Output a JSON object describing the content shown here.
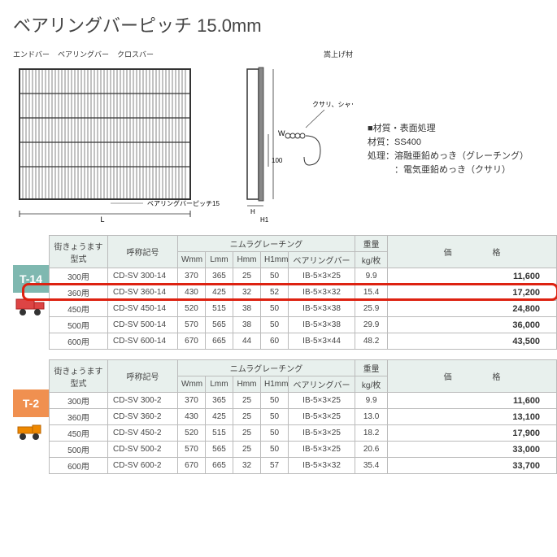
{
  "title": "ベアリングバーピッチ 15.0mm",
  "diagram_labels": {
    "endbar": "エンドバー",
    "bearingbar": "ベアリングバー",
    "crossbar": "クロスバー",
    "lift": "嵩上げ材",
    "chain": "クサリ、シャックル",
    "pitch_note": "ベアリングバーピッチ15",
    "dim_L": "L",
    "dim_W": "W",
    "dim_100": "100",
    "dim_H": "H",
    "dim_H1": "H1"
  },
  "material": {
    "head": "■材質・表面処理",
    "line1": "材質：SS400",
    "line2": "処理：溶融亜鉛めっき（グレーチング）",
    "line3": "　　　：電気亜鉛めっき（クサリ）"
  },
  "headers": {
    "kata": "街きょうます型式",
    "model": "呼称記号",
    "group": "ニムラグレーチング",
    "W": "Wmm",
    "L": "Lmm",
    "H": "Hmm",
    "H1": "H1mm",
    "bar": "ベアリングバー",
    "weight_a": "重量",
    "weight_b": "kg/枚",
    "price": "価　　　　　格"
  },
  "t14": {
    "tag": "T-14",
    "rows": [
      {
        "kata": "300用",
        "model": "CD-SV  300-14",
        "W": "370",
        "L": "365",
        "H": "25",
        "H1": "50",
        "bar": "IB-5×3×25",
        "wt": "9.9",
        "price": "11,600"
      },
      {
        "kata": "360用",
        "model": "CD-SV  360-14",
        "W": "430",
        "L": "425",
        "H": "32",
        "H1": "52",
        "bar": "IB-5×3×32",
        "wt": "15.4",
        "price": "17,200"
      },
      {
        "kata": "450用",
        "model": "CD-SV  450-14",
        "W": "520",
        "L": "515",
        "H": "38",
        "H1": "50",
        "bar": "IB-5×3×38",
        "wt": "25.9",
        "price": "24,800"
      },
      {
        "kata": "500用",
        "model": "CD-SV  500-14",
        "W": "570",
        "L": "565",
        "H": "38",
        "H1": "50",
        "bar": "IB-5×3×38",
        "wt": "29.9",
        "price": "36,000"
      },
      {
        "kata": "600用",
        "model": "CD-SV  600-14",
        "W": "670",
        "L": "665",
        "H": "44",
        "H1": "60",
        "bar": "IB-5×3×44",
        "wt": "48.2",
        "price": "43,500"
      }
    ],
    "highlight_row": 1,
    "colors": {
      "tag_bg": "#7fb8b0",
      "highlight": "#d21"
    }
  },
  "t2": {
    "tag": "T-2",
    "rows": [
      {
        "kata": "300用",
        "model": "CD-SV  300-2",
        "W": "370",
        "L": "365",
        "H": "25",
        "H1": "50",
        "bar": "IB-5×3×25",
        "wt": "9.9",
        "price": "11,600"
      },
      {
        "kata": "360用",
        "model": "CD-SV  360-2",
        "W": "430",
        "L": "425",
        "H": "25",
        "H1": "50",
        "bar": "IB-5×3×25",
        "wt": "13.0",
        "price": "13,100"
      },
      {
        "kata": "450用",
        "model": "CD-SV  450-2",
        "W": "520",
        "L": "515",
        "H": "25",
        "H1": "50",
        "bar": "IB-5×3×25",
        "wt": "18.2",
        "price": "17,900"
      },
      {
        "kata": "500用",
        "model": "CD-SV  500-2",
        "W": "570",
        "L": "565",
        "H": "25",
        "H1": "50",
        "bar": "IB-5×3×25",
        "wt": "20.6",
        "price": "33,000"
      },
      {
        "kata": "600用",
        "model": "CD-SV  600-2",
        "W": "670",
        "L": "665",
        "H": "32",
        "H1": "57",
        "bar": "IB-5×3×32",
        "wt": "35.4",
        "price": "33,700"
      }
    ],
    "colors": {
      "tag_bg": "#f09050"
    }
  },
  "style": {
    "header_bg": "#e8f0ed",
    "border": "#bbb",
    "text": "#444"
  }
}
